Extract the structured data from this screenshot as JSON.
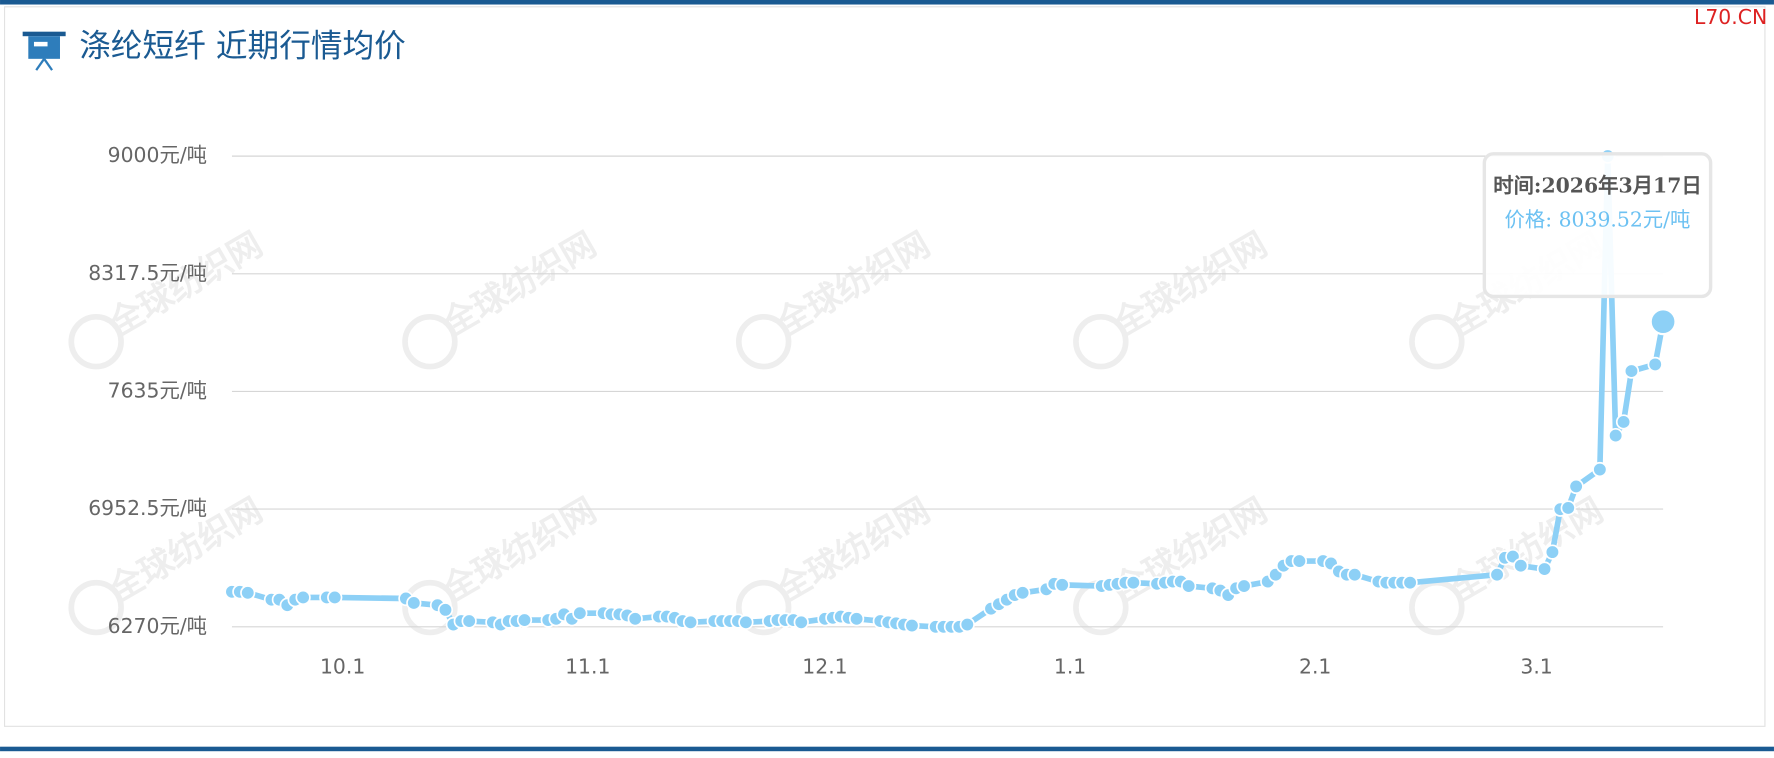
{
  "title": "涤纶短纤 近期行情均价",
  "site_mark": "L70.CN",
  "watermark": "全球纺织网",
  "chart_data": {
    "type": "line",
    "color": "#8dd0f6",
    "x": [
      "2025-09-17",
      "2025-09-18",
      "2025-09-19",
      "2025-09-22",
      "2025-09-23",
      "2025-09-24",
      "2025-09-25",
      "2025-09-26",
      "2025-09-29",
      "2025-09-30",
      "2025-10-09",
      "2025-10-10",
      "2025-10-13",
      "2025-10-14",
      "2025-10-15",
      "2025-10-16",
      "2025-10-17",
      "2025-10-20",
      "2025-10-21",
      "2025-10-22",
      "2025-10-23",
      "2025-10-24",
      "2025-10-27",
      "2025-10-28",
      "2025-10-29",
      "2025-10-30",
      "2025-10-31",
      "2025-11-03",
      "2025-11-04",
      "2025-11-05",
      "2025-11-06",
      "2025-11-07",
      "2025-11-10",
      "2025-11-11",
      "2025-11-12",
      "2025-11-13",
      "2025-11-14",
      "2025-11-17",
      "2025-11-18",
      "2025-11-19",
      "2025-11-20",
      "2025-11-21",
      "2025-11-24",
      "2025-11-25",
      "2025-11-26",
      "2025-11-27",
      "2025-11-28",
      "2025-12-01",
      "2025-12-02",
      "2025-12-03",
      "2025-12-04",
      "2025-12-05",
      "2025-12-08",
      "2025-12-09",
      "2025-12-10",
      "2025-12-11",
      "2025-12-12",
      "2025-12-15",
      "2025-12-16",
      "2025-12-17",
      "2025-12-18",
      "2025-12-19",
      "2025-12-22",
      "2025-12-23",
      "2025-12-24",
      "2025-12-25",
      "2025-12-26",
      "2025-12-29",
      "2025-12-30",
      "2025-12-31",
      "2026-01-05",
      "2026-01-06",
      "2026-01-07",
      "2026-01-08",
      "2026-01-09",
      "2026-01-12",
      "2026-01-13",
      "2026-01-14",
      "2026-01-15",
      "2026-01-16",
      "2026-01-19",
      "2026-01-20",
      "2026-01-21",
      "2026-01-22",
      "2026-01-23",
      "2026-01-26",
      "2026-01-27",
      "2026-01-28",
      "2026-01-29",
      "2026-01-30",
      "2026-02-02",
      "2026-02-03",
      "2026-02-04",
      "2026-02-05",
      "2026-02-06",
      "2026-02-09",
      "2026-02-10",
      "2026-02-11",
      "2026-02-12",
      "2026-02-13",
      "2026-02-24",
      "2026-02-25",
      "2026-02-26",
      "2026-02-27",
      "2026-03-02",
      "2026-03-03",
      "2026-03-04",
      "2026-03-05",
      "2026-03-06",
      "2026-03-09",
      "2026-03-10",
      "2026-03-11",
      "2026-03-12",
      "2026-03-13",
      "2026-03-16",
      "2026-03-17"
    ],
    "values": [
      6473,
      6473,
      6467,
      6427,
      6427,
      6395,
      6427,
      6440,
      6440,
      6440,
      6434,
      6408,
      6395,
      6368,
      6283,
      6303,
      6303,
      6296,
      6283,
      6303,
      6303,
      6309,
      6309,
      6316,
      6342,
      6316,
      6349,
      6349,
      6342,
      6342,
      6336,
      6316,
      6329,
      6329,
      6322,
      6303,
      6296,
      6303,
      6303,
      6303,
      6303,
      6296,
      6303,
      6309,
      6309,
      6309,
      6296,
      6316,
      6322,
      6329,
      6322,
      6316,
      6303,
      6296,
      6290,
      6283,
      6277,
      6270,
      6270,
      6270,
      6270,
      6283,
      6375,
      6401,
      6427,
      6454,
      6467,
      6487,
      6519,
      6513,
      6506,
      6513,
      6519,
      6526,
      6526,
      6519,
      6526,
      6532,
      6532,
      6506,
      6493,
      6480,
      6454,
      6493,
      6506,
      6532,
      6572,
      6624,
      6651,
      6651,
      6651,
      6637,
      6591,
      6572,
      6572,
      6532,
      6526,
      6526,
      6526,
      6526,
      6572,
      6670,
      6677,
      6624,
      6605,
      6703,
      6952,
      6959,
      7084,
      7182,
      9000,
      7379,
      7458,
      7753,
      7792,
      8039.52
    ],
    "xlim": [
      "2025-09-17",
      "2026-03-17"
    ],
    "xticks": [
      {
        "value": "2025-10-01",
        "label": "10.1"
      },
      {
        "value": "2025-11-01",
        "label": "11.1"
      },
      {
        "value": "2025-12-01",
        "label": "12.1"
      },
      {
        "value": "2026-01-01",
        "label": "1.1"
      },
      {
        "value": "2026-02-01",
        "label": "2.1"
      },
      {
        "value": "2026-03-01",
        "label": "3.1"
      }
    ],
    "ylim": [
      6270,
      9000
    ],
    "yticks": [
      {
        "value": 6270,
        "label": "6270元/吨"
      },
      {
        "value": 6952.5,
        "label": "6952.5元/吨"
      },
      {
        "value": 7635,
        "label": "7635元/吨"
      },
      {
        "value": 8317.5,
        "label": "8317.5元/吨"
      },
      {
        "value": 9000,
        "label": "9000元/吨"
      }
    ],
    "grid": true,
    "tooltip": {
      "time": "时间:2026年3月17日",
      "price": "价格: 8039.52元/吨"
    }
  }
}
